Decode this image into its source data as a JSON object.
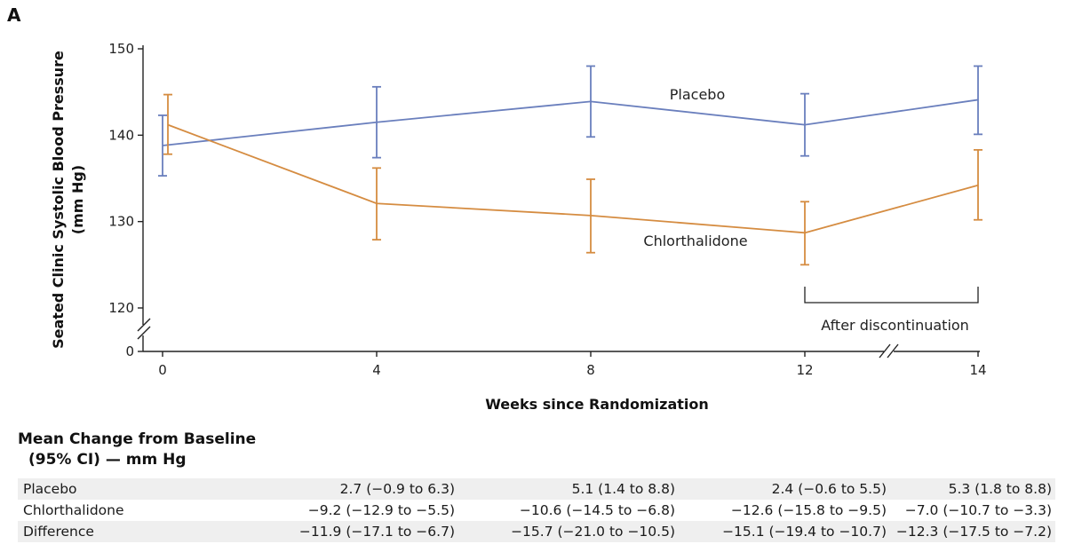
{
  "panel_label": "A",
  "chart_data": {
    "type": "line",
    "title": "",
    "ylabel_line1": "Seated Clinic Systolic Blood Pressure",
    "ylabel_line2": "(mm Hg)",
    "xlabel": "Weeks since Randomization",
    "x": [
      0,
      4,
      8,
      12,
      14
    ],
    "x_tick_labels": [
      "0",
      "4",
      "8",
      "12",
      "14"
    ],
    "y_tick_values": [
      0,
      120,
      130,
      140,
      150
    ],
    "y_tick_labels": [
      "0",
      "120",
      "130",
      "140",
      "150"
    ],
    "ylim": [
      120,
      150
    ],
    "y_axis_break": true,
    "x_axis_break": "between 12 and 14",
    "grid": false,
    "series": [
      {
        "name": "Placebo",
        "color": "#6a7fbd",
        "values": [
          138.8,
          141.5,
          143.9,
          141.2,
          144.1
        ],
        "ci_lower": [
          135.3,
          137.4,
          139.8,
          137.6,
          140.1
        ],
        "ci_upper": [
          142.3,
          145.6,
          148.0,
          144.8,
          148.0
        ]
      },
      {
        "name": "Chlorthalidone",
        "color": "#d58c41",
        "values": [
          141.2,
          132.1,
          130.7,
          128.7,
          134.2
        ],
        "ci_lower": [
          137.8,
          127.9,
          126.4,
          125.0,
          130.2
        ],
        "ci_upper": [
          144.7,
          136.2,
          134.9,
          132.3,
          138.3
        ]
      }
    ],
    "annotations": [
      {
        "text": "After discontinuation",
        "type": "bracket",
        "from_x": 12,
        "to_x": 14
      }
    ]
  },
  "table": {
    "title_line1": "Mean Change from Baseline",
    "title_line2": "(95% CI) — mm Hg",
    "rows": [
      {
        "label": "Placebo",
        "cells": [
          "2.7 (−0.9 to 6.3)",
          "5.1 (1.4 to 8.8)",
          "2.4 (−0.6 to 5.5)",
          "5.3 (1.8 to 8.8)"
        ]
      },
      {
        "label": "Chlorthalidone",
        "cells": [
          "−9.2 (−12.9 to −5.5)",
          "−10.6 (−14.5 to −6.8)",
          "−12.6 (−15.8 to −9.5)",
          "−7.0 (−10.7 to −3.3)"
        ]
      },
      {
        "label": "Difference",
        "cells": [
          "−11.9 (−17.1 to −6.7)",
          "−15.7 (−21.0 to −10.5)",
          "−15.1 (−19.4 to −10.7)",
          "−12.3 (−17.5 to −7.2)"
        ]
      }
    ]
  }
}
